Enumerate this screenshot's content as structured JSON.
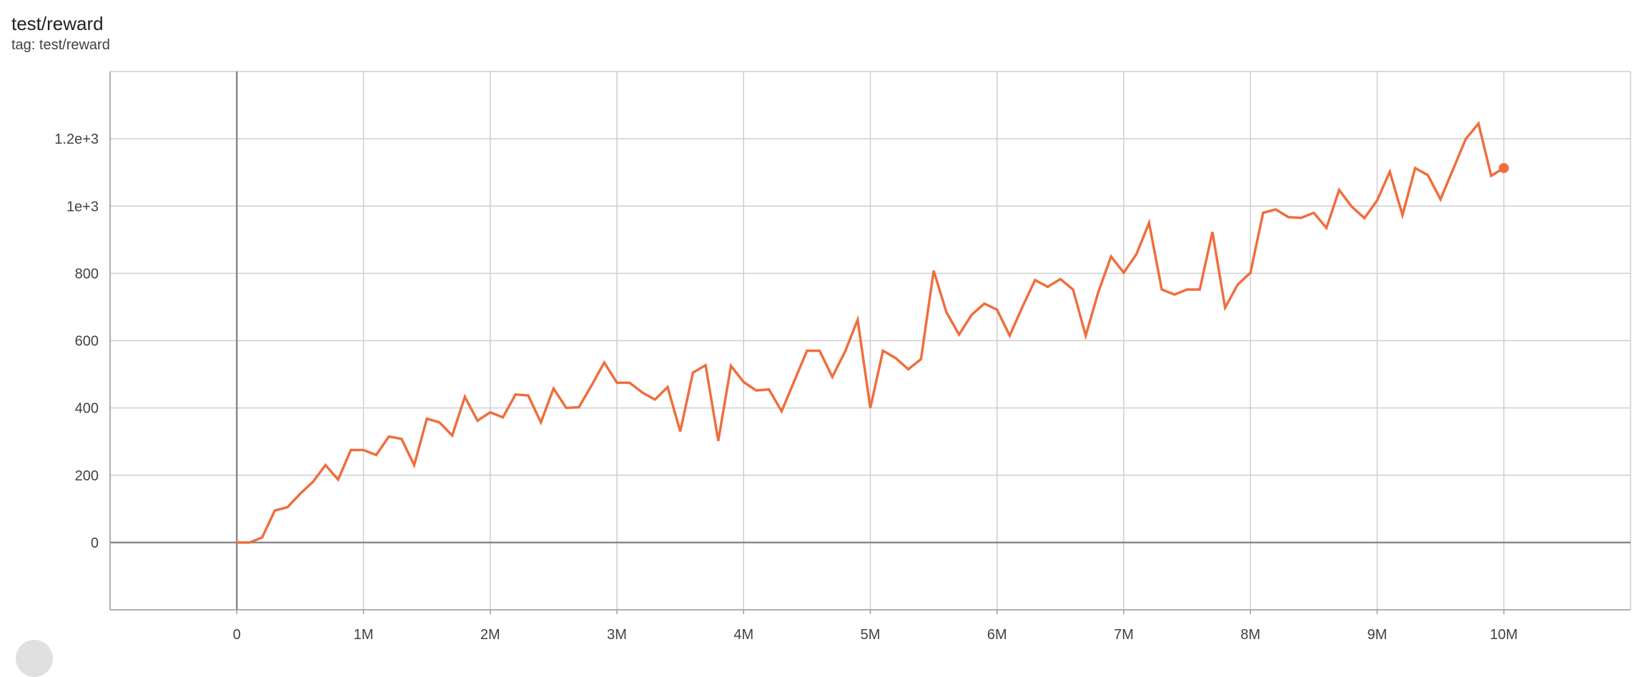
{
  "header": {
    "title": "test/reward",
    "tag": "tag: test/reward"
  },
  "chart_data": {
    "type": "line",
    "title": "test/reward",
    "subtitle": "tag: test/reward",
    "xlabel": "",
    "ylabel": "",
    "xlim": [
      -1000000,
      11000000
    ],
    "ylim": [
      -200,
      1400
    ],
    "grid": true,
    "color": "#ef6e3d",
    "x_ticks": [
      0,
      1000000,
      2000000,
      3000000,
      4000000,
      5000000,
      6000000,
      7000000,
      8000000,
      9000000,
      10000000
    ],
    "x_tick_labels": [
      "0",
      "1M",
      "2M",
      "3M",
      "4M",
      "5M",
      "6M",
      "7M",
      "8M",
      "9M",
      "10M"
    ],
    "y_ticks": [
      0,
      200,
      400,
      600,
      800,
      1000,
      1200
    ],
    "y_tick_labels": [
      "0",
      "200",
      "400",
      "600",
      "800",
      "1e+3",
      "1.2e+3"
    ],
    "x_step": 100000,
    "series": [
      {
        "values": [
          0,
          0,
          15,
          95,
          105,
          145,
          180,
          230,
          187,
          275,
          275,
          260,
          315,
          308,
          230,
          368,
          357,
          318,
          433,
          362,
          387,
          372,
          440,
          437,
          357,
          458,
          400,
          402,
          467,
          535,
          475,
          475,
          446,
          425,
          462,
          330,
          505,
          527,
          302,
          525,
          477,
          452,
          455,
          390,
          480,
          570,
          570,
          492,
          567,
          662,
          400,
          570,
          548,
          515,
          545,
          808,
          685,
          618,
          677,
          710,
          692,
          615,
          700,
          780,
          760,
          783,
          752,
          615,
          745,
          850,
          802,
          857,
          950,
          752,
          737,
          752,
          752,
          923,
          698,
          767,
          802,
          980,
          990,
          967,
          965,
          980,
          935,
          1048,
          998,
          964,
          1017,
          1102,
          973,
          1113,
          1092,
          1020,
          1110,
          1200,
          1245,
          1090,
          1113
        ]
      }
    ]
  }
}
